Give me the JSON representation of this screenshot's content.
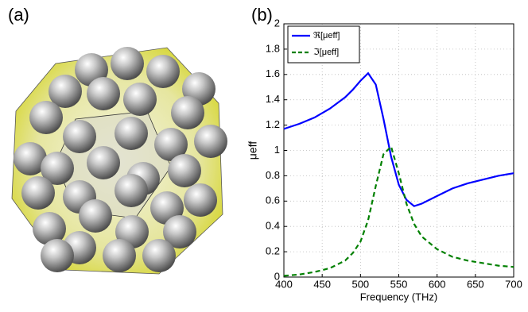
{
  "panel_a": {
    "label": "(a)"
  },
  "chart_data": {
    "type": "line",
    "panel_label": "(b)",
    "xlabel": "Frequency (THz)",
    "ylabel": "μeff",
    "x": [
      400,
      420,
      440,
      460,
      480,
      490,
      500,
      510,
      520,
      530,
      540,
      550,
      560,
      570,
      580,
      600,
      620,
      640,
      660,
      680,
      700
    ],
    "series": [
      {
        "name": "ℜ[μeff]",
        "color": "#0000ff",
        "dash": "solid",
        "values": [
          1.17,
          1.21,
          1.26,
          1.33,
          1.42,
          1.48,
          1.55,
          1.61,
          1.52,
          1.25,
          0.95,
          0.73,
          0.61,
          0.56,
          0.58,
          0.64,
          0.7,
          0.74,
          0.77,
          0.8,
          0.82
        ]
      },
      {
        "name": "ℑ[μeff]",
        "color": "#008000",
        "dash": "dashed",
        "values": [
          0.01,
          0.02,
          0.04,
          0.07,
          0.13,
          0.19,
          0.28,
          0.45,
          0.72,
          0.97,
          1.03,
          0.82,
          0.58,
          0.42,
          0.32,
          0.22,
          0.16,
          0.13,
          0.11,
          0.09,
          0.08
        ]
      }
    ],
    "xlim": [
      400,
      700
    ],
    "xticks": [
      400,
      450,
      500,
      550,
      600,
      650,
      700
    ],
    "ylim": [
      0,
      2
    ],
    "yticks": [
      0,
      0.2,
      0.4,
      0.6,
      0.8,
      1,
      1.2,
      1.4,
      1.6,
      1.8,
      2
    ],
    "grid": true,
    "legend": "upper left"
  }
}
